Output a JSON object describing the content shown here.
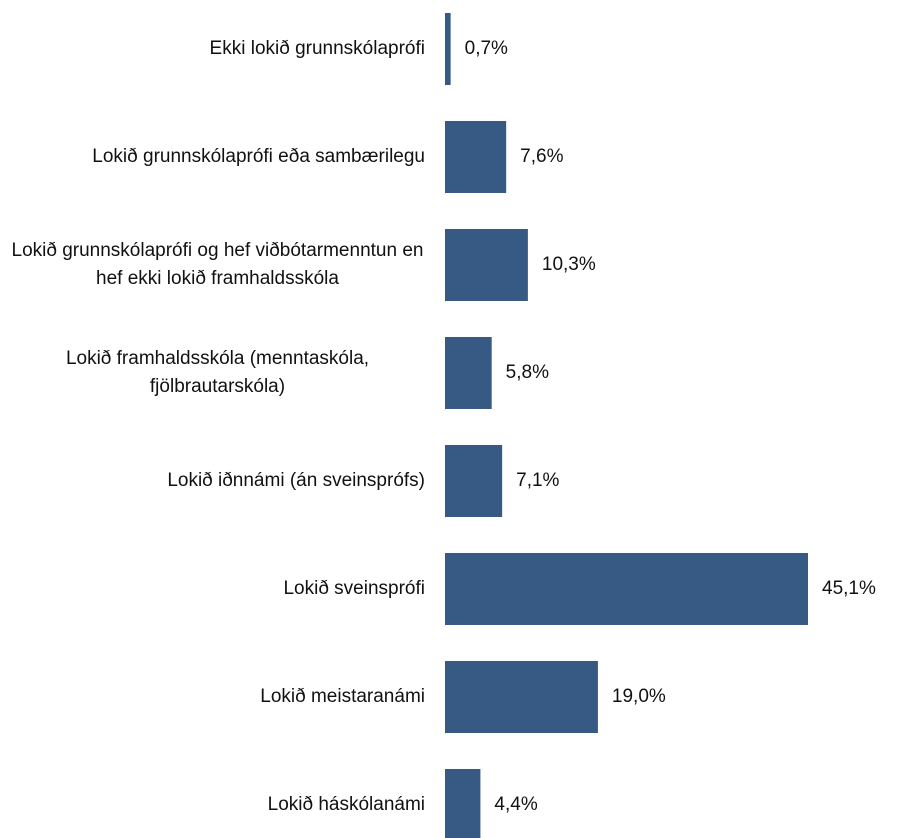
{
  "chart_data": {
    "type": "barh",
    "categories": [
      "Ekki lokið grunnskólaprófi",
      "Lokið grunnskólaprófi eða sambærilegu",
      "Lokið grunnskólaprófi og hef viðbótarmenntun en hef ekki lokið framhaldsskóla",
      "Lokið framhaldsskóla (menntaskóla, fjölbrautarskóla)",
      "Lokið iðnnámi (án sveinsprófs)",
      "Lokið sveinsprófi",
      "Lokið meistaranámi",
      "Lokið háskólanámi"
    ],
    "values": [
      0.7,
      7.6,
      10.3,
      5.8,
      7.1,
      45.1,
      19.0,
      4.4
    ],
    "value_labels": [
      "0,7%",
      "7,6%",
      "10,3%",
      "5,8%",
      "7,1%",
      "45,1%",
      "19,0%",
      "4,4%"
    ],
    "color": "#375a85"
  }
}
